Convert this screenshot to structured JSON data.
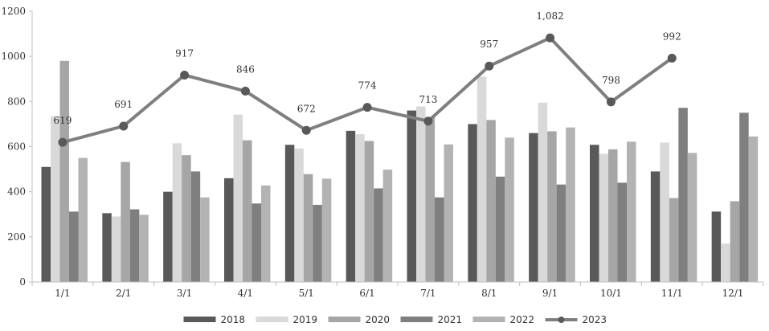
{
  "chart_data": {
    "type": "bar",
    "title": "",
    "xlabel": "",
    "ylabel": "",
    "ylim": [
      0,
      1200
    ],
    "yticks": [
      0,
      200,
      400,
      600,
      800,
      1000,
      1200
    ],
    "grid": false,
    "legend_position": "bottom",
    "categories": [
      "1/1",
      "2/1",
      "3/1",
      "4/1",
      "5/1",
      "6/1",
      "7/1",
      "8/1",
      "9/1",
      "10/1",
      "11/1",
      "12/1"
    ],
    "series": [
      {
        "name": "2018",
        "type": "bar",
        "color": "#595959",
        "values": [
          510,
          305,
          400,
          460,
          608,
          670,
          760,
          700,
          660,
          608,
          490,
          312
        ]
      },
      {
        "name": "2019",
        "type": "bar",
        "color": "#d9d9d9",
        "values": [
          735,
          290,
          615,
          742,
          592,
          655,
          778,
          910,
          795,
          568,
          618,
          170
        ]
      },
      {
        "name": "2020",
        "type": "bar",
        "color": "#a6a6a6",
        "values": [
          980,
          532,
          562,
          628,
          478,
          625,
          730,
          718,
          668,
          588,
          372,
          358
        ]
      },
      {
        "name": "2021",
        "type": "bar",
        "color": "#7f7f7f",
        "values": [
          312,
          322,
          490,
          348,
          342,
          415,
          375,
          467,
          432,
          440,
          772,
          750
        ]
      },
      {
        "name": "2022",
        "type": "bar",
        "color": "#b3b3b3",
        "values": [
          550,
          298,
          375,
          428,
          458,
          498,
          610,
          640,
          685,
          622,
          572,
          645
        ]
      },
      {
        "name": "2023",
        "type": "line",
        "color": "#7f7f7f",
        "values": [
          619,
          691,
          917,
          846,
          672,
          774,
          713,
          957,
          1082,
          798,
          992,
          null
        ],
        "labels": [
          "619",
          "691",
          "917",
          "846",
          "672",
          "774",
          "713",
          "957",
          "1,082",
          "798",
          "992",
          ""
        ]
      }
    ]
  }
}
